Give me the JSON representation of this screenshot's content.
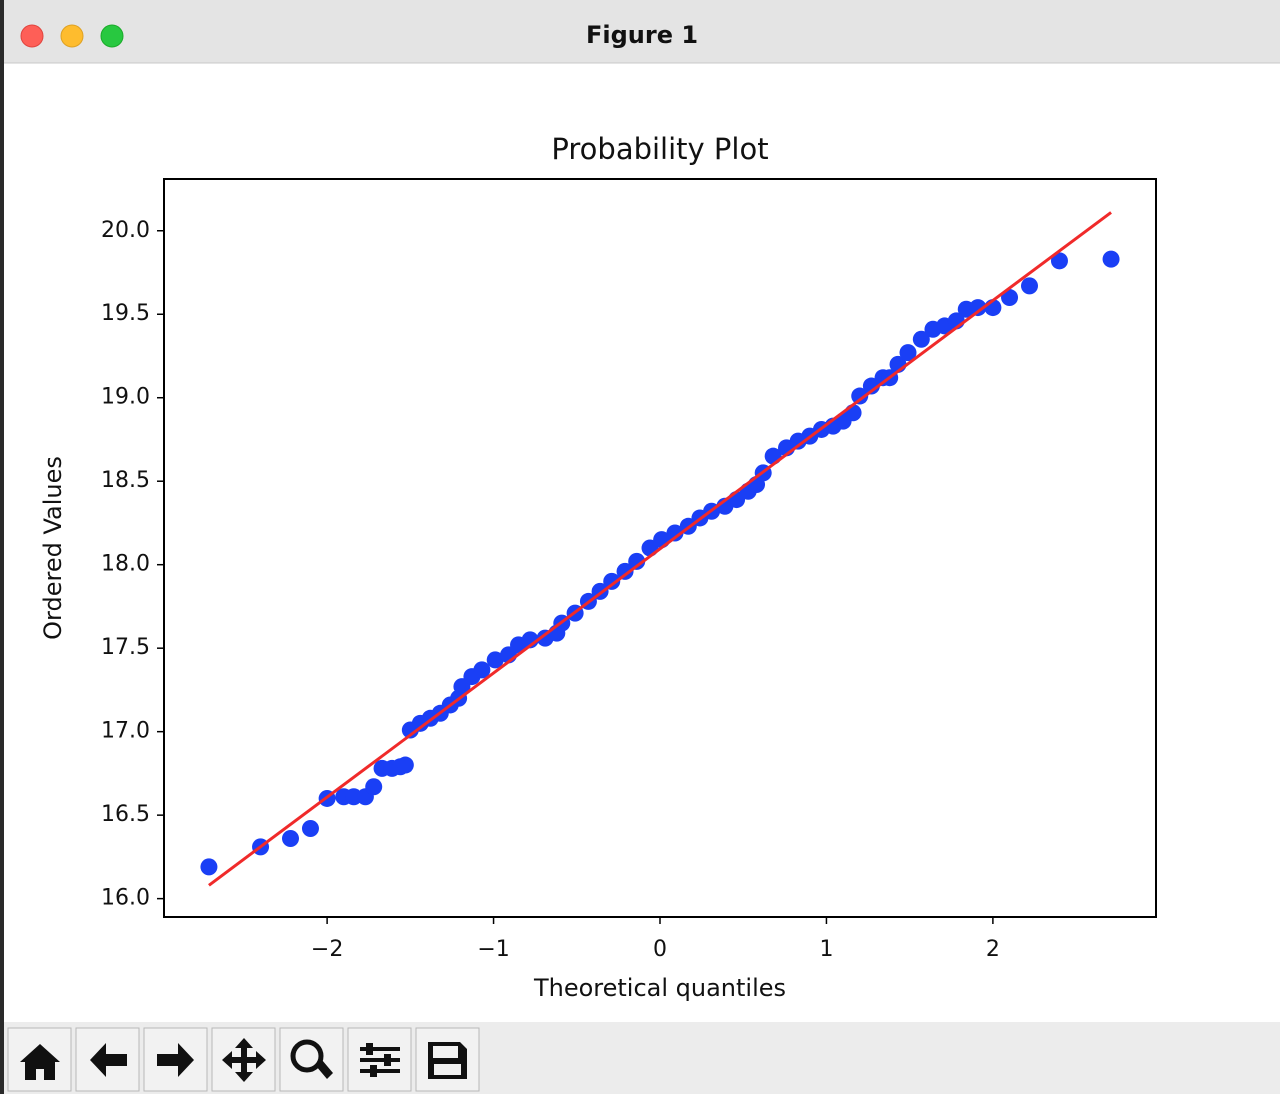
{
  "window": {
    "title": "Figure 1"
  },
  "chart_data": {
    "type": "scatter",
    "title": "Probability Plot",
    "xlabel": "Theoretical quantiles",
    "ylabel": "Ordered Values",
    "x": [
      -2.71,
      -2.4,
      -2.22,
      -2.1,
      -2.0,
      -1.9,
      -1.84,
      -1.77,
      -1.72,
      -1.67,
      -1.61,
      -1.56,
      -1.53,
      -1.5,
      -1.44,
      -1.38,
      -1.32,
      -1.26,
      -1.21,
      -1.19,
      -1.13,
      -1.07,
      -0.99,
      -0.91,
      -0.85,
      -0.78,
      -0.69,
      -0.62,
      -0.59,
      -0.51,
      -0.43,
      -0.36,
      -0.29,
      -0.21,
      -0.14,
      -0.06,
      0.01,
      0.09,
      0.17,
      0.24,
      0.31,
      0.39,
      0.46,
      0.53,
      0.58,
      0.62,
      0.68,
      0.76,
      0.83,
      0.9,
      0.97,
      1.04,
      1.1,
      1.16,
      1.2,
      1.27,
      1.34,
      1.38,
      1.43,
      1.49,
      1.57,
      1.64,
      1.71,
      1.78,
      1.84,
      1.91,
      2.0,
      2.1,
      2.22,
      2.4,
      2.71
    ],
    "values": [
      16.19,
      16.31,
      16.36,
      16.42,
      16.6,
      16.61,
      16.61,
      16.61,
      16.67,
      16.78,
      16.78,
      16.79,
      16.8,
      17.01,
      17.05,
      17.08,
      17.11,
      17.16,
      17.2,
      17.27,
      17.33,
      17.37,
      17.43,
      17.46,
      17.52,
      17.55,
      17.56,
      17.59,
      17.65,
      17.71,
      17.78,
      17.84,
      17.9,
      17.96,
      18.02,
      18.1,
      18.15,
      18.19,
      18.23,
      18.28,
      18.32,
      18.35,
      18.39,
      18.44,
      18.48,
      18.55,
      18.65,
      18.7,
      18.74,
      18.77,
      18.81,
      18.83,
      18.86,
      18.91,
      19.01,
      19.07,
      19.12,
      19.12,
      19.2,
      19.27,
      19.35,
      19.41,
      19.43,
      19.46,
      19.53,
      19.54,
      19.54,
      19.6,
      19.67,
      19.82,
      19.83
    ],
    "color": "#1a3ff5",
    "fit": {
      "x": [
        -2.71,
        2.71
      ],
      "values": [
        16.08,
        20.11
      ],
      "color": "#f02a2a"
    },
    "xlim": [
      -2.98,
      2.98
    ],
    "ylim": [
      15.89,
      20.31
    ],
    "xticks": [
      {
        "value": -2,
        "label": "−2"
      },
      {
        "value": -1,
        "label": "−1"
      },
      0,
      1,
      2
    ],
    "yticks": [
      {
        "value": 16,
        "label": "16.0"
      },
      16.5,
      {
        "value": 17,
        "label": "17.0"
      },
      17.5,
      {
        "value": 18,
        "label": "18.0"
      },
      18.5,
      {
        "value": 19,
        "label": "19.0"
      },
      19.5,
      {
        "value": 20,
        "label": "20.0"
      }
    ],
    "grid": false
  }
}
